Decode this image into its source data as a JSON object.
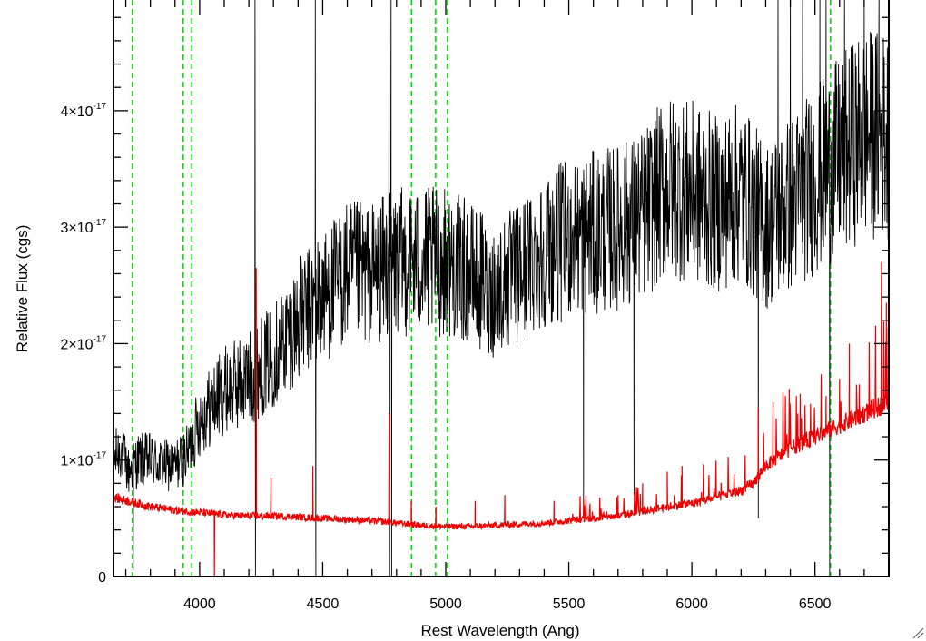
{
  "chart_data": {
    "type": "line",
    "title": "",
    "xlabel": "Rest Wavelength (Ang)",
    "ylabel": "Relative Flux (cgs)",
    "xlim": [
      3650,
      6800
    ],
    "ylim": [
      0,
      4.95e-17
    ],
    "x_ticks": [
      {
        "value": 4000,
        "label": "4000"
      },
      {
        "value": 4500,
        "label": "4500"
      },
      {
        "value": 5000,
        "label": "5000"
      },
      {
        "value": 5500,
        "label": "5500"
      },
      {
        "value": 6000,
        "label": "6000"
      },
      {
        "value": 6500,
        "label": "6500"
      }
    ],
    "x_minor_step": 100,
    "y_ticks": [
      {
        "value": 0,
        "mantissa": "0",
        "exponent": ""
      },
      {
        "value": 1e-17,
        "mantissa": "1×10",
        "exponent": "-17"
      },
      {
        "value": 2e-17,
        "mantissa": "2×10",
        "exponent": "-17"
      },
      {
        "value": 3e-17,
        "mantissa": "3×10",
        "exponent": "-17"
      },
      {
        "value": 4e-17,
        "mantissa": "4×10",
        "exponent": "-17"
      }
    ],
    "y_minor_step": 2e-18,
    "grid": false,
    "reference_lines": {
      "color": "#00dd00",
      "style": "dashed",
      "x": [
        3727,
        3933,
        3968,
        4861,
        4959,
        5007,
        6563
      ]
    },
    "series": [
      {
        "color": "#000000",
        "points": [
          [
            3650,
            1e-17
          ],
          [
            3680,
            1.1e-17
          ],
          [
            3710,
            9e-18
          ],
          [
            3750,
            1e-17
          ],
          [
            3800,
            1e-17
          ],
          [
            3850,
            9.5e-18
          ],
          [
            3900,
            9.5e-18
          ],
          [
            3950,
            1.05e-17
          ],
          [
            4000,
            1.35e-17
          ],
          [
            4100,
            1.6e-17
          ],
          [
            4200,
            1.7e-17
          ],
          [
            4300,
            1.9e-17
          ],
          [
            4400,
            2.2e-17
          ],
          [
            4500,
            2.4e-17
          ],
          [
            4600,
            2.6e-17
          ],
          [
            4700,
            2.6e-17
          ],
          [
            4800,
            2.7e-17
          ],
          [
            4900,
            2.7e-17
          ],
          [
            5000,
            2.7e-17
          ],
          [
            5100,
            2.6e-17
          ],
          [
            5200,
            2.45e-17
          ],
          [
            5300,
            2.6e-17
          ],
          [
            5400,
            2.8e-17
          ],
          [
            5500,
            2.9e-17
          ],
          [
            5600,
            2.95e-17
          ],
          [
            5700,
            3e-17
          ],
          [
            5800,
            3.1e-17
          ],
          [
            5900,
            3.35e-17
          ],
          [
            6000,
            3.3e-17
          ],
          [
            6100,
            3.2e-17
          ],
          [
            6200,
            3.3e-17
          ],
          [
            6300,
            3e-17
          ],
          [
            6400,
            3.2e-17
          ],
          [
            6500,
            3.4e-17
          ],
          [
            6600,
            3.6e-17
          ],
          [
            6700,
            3.8e-17
          ],
          [
            6800,
            3.8e-17
          ]
        ],
        "noise_rel": 0.24,
        "spikes": [
          [
            3730,
            5e-19
          ],
          [
            4225,
            4.95e-17
          ],
          [
            4227,
            0.0
          ],
          [
            4470,
            4.95e-17
          ],
          [
            4472,
            0.0
          ],
          [
            4770,
            4.95e-17
          ],
          [
            4772,
            0.0
          ],
          [
            4778,
            4.95e-17
          ],
          [
            4780,
            0.0
          ],
          [
            5560,
            6e-18
          ],
          [
            5765,
            7e-18
          ],
          [
            6270,
            5e-18
          ],
          [
            6350,
            4.95e-17
          ],
          [
            6400,
            4.95e-17
          ],
          [
            6450,
            4.95e-17
          ],
          [
            6520,
            4.95e-17
          ],
          [
            6545,
            4.95e-17
          ],
          [
            6560,
            0.0
          ],
          [
            6620,
            4.95e-17
          ],
          [
            6700,
            4.95e-17
          ],
          [
            6760,
            4.95e-17
          ]
        ]
      },
      {
        "color": "#ee0000",
        "points": [
          [
            3650,
            6.8e-18
          ],
          [
            3800,
            6e-18
          ],
          [
            3900,
            5.7e-18
          ],
          [
            4000,
            5.5e-18
          ],
          [
            4100,
            5.3e-18
          ],
          [
            4200,
            5.2e-18
          ],
          [
            4300,
            5.2e-18
          ],
          [
            4400,
            5.1e-18
          ],
          [
            4500,
            5e-18
          ],
          [
            4600,
            4.9e-18
          ],
          [
            4700,
            4.8e-18
          ],
          [
            4800,
            4.6e-18
          ],
          [
            4900,
            4.4e-18
          ],
          [
            5000,
            4.3e-18
          ],
          [
            5100,
            4.3e-18
          ],
          [
            5200,
            4.4e-18
          ],
          [
            5300,
            4.5e-18
          ],
          [
            5400,
            4.6e-18
          ],
          [
            5500,
            4.8e-18
          ],
          [
            5600,
            5e-18
          ],
          [
            5700,
            5.2e-18
          ],
          [
            5800,
            5.6e-18
          ],
          [
            5900,
            6e-18
          ],
          [
            6000,
            6.3e-18
          ],
          [
            6100,
            6.8e-18
          ],
          [
            6200,
            7.4e-18
          ],
          [
            6250,
            8e-18
          ],
          [
            6300,
            9.5e-18
          ],
          [
            6400,
            1.1e-17
          ],
          [
            6500,
            1.2e-17
          ],
          [
            6600,
            1.3e-17
          ],
          [
            6700,
            1.4e-17
          ],
          [
            6800,
            1.5e-17
          ]
        ],
        "noise_rel": 0.06,
        "spikes": [
          [
            4060,
            0.0
          ],
          [
            4230,
            2.65e-17
          ],
          [
            4290,
            8.5e-18
          ],
          [
            4460,
            9.5e-18
          ],
          [
            4770,
            1.4e-17
          ],
          [
            4860,
            6.5e-18
          ],
          [
            4960,
            6e-18
          ],
          [
            5120,
            6.5e-18
          ],
          [
            5240,
            7e-18
          ],
          [
            5440,
            6.5e-18
          ],
          [
            5700,
            7e-18
          ],
          [
            5800,
            8e-18
          ],
          [
            5900,
            9e-18
          ],
          [
            5960,
            9.5e-18
          ],
          [
            6270,
            1.45e-17
          ],
          [
            6330,
            1.5e-17
          ],
          [
            6380,
            1.55e-17
          ],
          [
            6430,
            1.4e-17
          ],
          [
            6545,
            1.55e-17
          ],
          [
            6600,
            1.7e-17
          ],
          [
            6640,
            2e-17
          ],
          [
            6680,
            1.65e-17
          ],
          [
            6720,
            1.75e-17
          ],
          [
            6770,
            2.7e-17
          ],
          [
            6790,
            2.35e-17
          ]
        ]
      }
    ]
  }
}
